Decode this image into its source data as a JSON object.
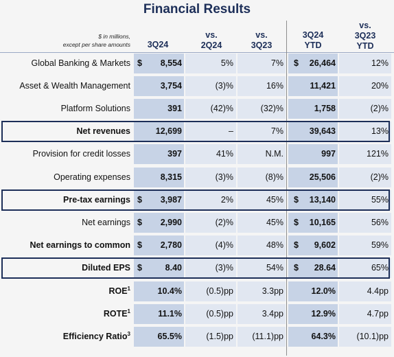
{
  "title": "Financial Results",
  "header": {
    "note_line1": "$ in millions,",
    "note_line2": "except per share amounts",
    "col_3q24": "3Q24",
    "col_vs2q24_a": "vs.",
    "col_vs2q24_b": "2Q24",
    "col_vs3q23_a": "vs.",
    "col_vs3q23_b": "3Q23",
    "col_ytd_a": "3Q24",
    "col_ytd_b": "YTD",
    "col_ytdvs_a": "vs.",
    "col_ytdvs_b": "3Q23",
    "col_ytdvs_c": "YTD"
  },
  "rows": [
    {
      "label": "Global Banking & Markets",
      "cur1": "$",
      "q": "8,554",
      "vq": "5%",
      "vy": "7%",
      "cur2": "$",
      "ytd": "26,464",
      "vytd": "12%"
    },
    {
      "label": "Asset & Wealth Management",
      "cur1": "",
      "q": "3,754",
      "vq": "(3)%",
      "vy": "16%",
      "cur2": "",
      "ytd": "11,421",
      "vytd": "20%"
    },
    {
      "label": "Platform Solutions",
      "cur1": "",
      "q": "391",
      "vq": "(42)%",
      "vy": "(32)%",
      "cur2": "",
      "ytd": "1,758",
      "vytd": "(2)%"
    },
    {
      "label": "Net revenues",
      "cur1": "",
      "q": "12,699",
      "vq": "–",
      "vy": "7%",
      "cur2": "",
      "ytd": "39,643",
      "vytd": "13%"
    },
    {
      "label": "Provision for credit losses",
      "cur1": "",
      "q": "397",
      "vq": "41%",
      "vy": "N.M.",
      "cur2": "",
      "ytd": "997",
      "vytd": "121%"
    },
    {
      "label": "Operating expenses",
      "cur1": "",
      "q": "8,315",
      "vq": "(3)%",
      "vy": "(8)%",
      "cur2": "",
      "ytd": "25,506",
      "vytd": "(2)%"
    },
    {
      "label": "Pre-tax earnings",
      "cur1": "$",
      "q": "3,987",
      "vq": "2%",
      "vy": "45%",
      "cur2": "$",
      "ytd": "13,140",
      "vytd": "55%"
    },
    {
      "label": "Net earnings",
      "cur1": "$",
      "q": "2,990",
      "vq": "(2)%",
      "vy": "45%",
      "cur2": "$",
      "ytd": "10,165",
      "vytd": "56%"
    },
    {
      "label": "Net earnings to common",
      "cur1": "$",
      "q": "2,780",
      "vq": "(4)%",
      "vy": "48%",
      "cur2": "$",
      "ytd": "9,602",
      "vytd": "59%"
    },
    {
      "label": "Diluted EPS",
      "cur1": "$",
      "q": "8.40",
      "vq": "(3)%",
      "vy": "54%",
      "cur2": "$",
      "ytd": "28.64",
      "vytd": "65%"
    },
    {
      "label": "ROE",
      "sup": "1",
      "cur1": "",
      "q": "10.4%",
      "vq": "(0.5)pp",
      "vy": "3.3pp",
      "cur2": "",
      "ytd": "12.0%",
      "vytd": "4.4pp"
    },
    {
      "label": "ROTE",
      "sup": "1",
      "cur1": "",
      "q": "11.1%",
      "vq": "(0.5)pp",
      "vy": "3.4pp",
      "cur2": "",
      "ytd": "12.9%",
      "vytd": "4.7pp"
    },
    {
      "label": "Efficiency Ratio",
      "sup": "3",
      "cur1": "",
      "q": "65.5%",
      "vq": "(1.5)pp",
      "vy": "(11.1)pp",
      "cur2": "",
      "ytd": "64.3%",
      "vytd": "(10.1)pp"
    }
  ],
  "colors": {
    "navy": "#1c2e58",
    "band_dark": "#c7d3e6",
    "band_light": "#e1e7f1",
    "background": "#f5f5f5"
  }
}
